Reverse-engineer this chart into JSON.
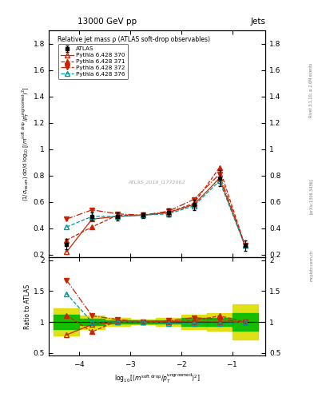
{
  "title_top": "13000 GeV pp",
  "title_right": "Jets",
  "plot_title": "Relative jet mass ρ (ATLAS soft-drop observables)",
  "watermark": "ATLAS_2019_I1772062",
  "ylim_main": [
    0.18,
    1.9
  ],
  "ylim_ratio": [
    0.45,
    2.05
  ],
  "xlim": [
    -4.6,
    -0.35
  ],
  "x_data": [
    -4.25,
    -3.75,
    -3.25,
    -2.75,
    -2.25,
    -1.75,
    -1.25,
    -0.75
  ],
  "x_edges": [
    -4.5,
    -4.0,
    -3.5,
    -3.0,
    -2.5,
    -2.0,
    -1.5,
    -1.0,
    -0.5
  ],
  "atlas_y": [
    0.28,
    0.49,
    0.49,
    0.5,
    0.52,
    0.58,
    0.78,
    0.27
  ],
  "atlas_yerr": [
    0.04,
    0.03,
    0.03,
    0.02,
    0.03,
    0.04,
    0.06,
    0.04
  ],
  "py370_y": [
    0.22,
    0.47,
    0.49,
    0.5,
    0.52,
    0.58,
    0.78,
    0.27
  ],
  "py371_y": [
    0.31,
    0.41,
    0.5,
    0.5,
    0.52,
    0.59,
    0.86,
    0.27
  ],
  "py372_y": [
    0.47,
    0.54,
    0.51,
    0.5,
    0.53,
    0.62,
    0.81,
    0.27
  ],
  "py376_y": [
    0.41,
    0.49,
    0.49,
    0.5,
    0.51,
    0.57,
    0.76,
    0.27
  ],
  "ratio370": [
    0.79,
    0.96,
    1.0,
    1.0,
    1.0,
    1.0,
    1.0,
    1.0
  ],
  "ratio371": [
    1.11,
    0.84,
    1.02,
    1.0,
    1.0,
    1.02,
    1.1,
    1.0
  ],
  "ratio372": [
    1.68,
    1.1,
    1.04,
    1.0,
    1.02,
    1.07,
    1.04,
    1.0
  ],
  "ratio376": [
    1.46,
    1.0,
    1.0,
    1.0,
    0.98,
    0.98,
    0.97,
    1.0
  ],
  "atlas_band_lo": [
    0.88,
    0.95,
    0.97,
    0.98,
    0.97,
    0.94,
    0.93,
    0.86
  ],
  "atlas_band_hi": [
    1.12,
    1.05,
    1.03,
    1.02,
    1.03,
    1.06,
    1.07,
    1.14
  ],
  "atlas_band_lo_y": [
    0.78,
    0.89,
    0.93,
    0.96,
    0.93,
    0.88,
    0.86,
    0.72
  ],
  "atlas_band_hi_y": [
    1.22,
    1.11,
    1.07,
    1.04,
    1.07,
    1.12,
    1.14,
    1.28
  ],
  "py370_color": "#cc2200",
  "py371_color": "#cc2200",
  "py372_color": "#cc2200",
  "py376_color": "#009999",
  "band_green": "#00bb00",
  "band_yellow": "#dddd00",
  "right_label1": "Rivet 3.1.10; ≥ 2.6M events",
  "right_label2": "[arXiv:1306.3436]",
  "right_label3": "mcplots.cern.ch"
}
